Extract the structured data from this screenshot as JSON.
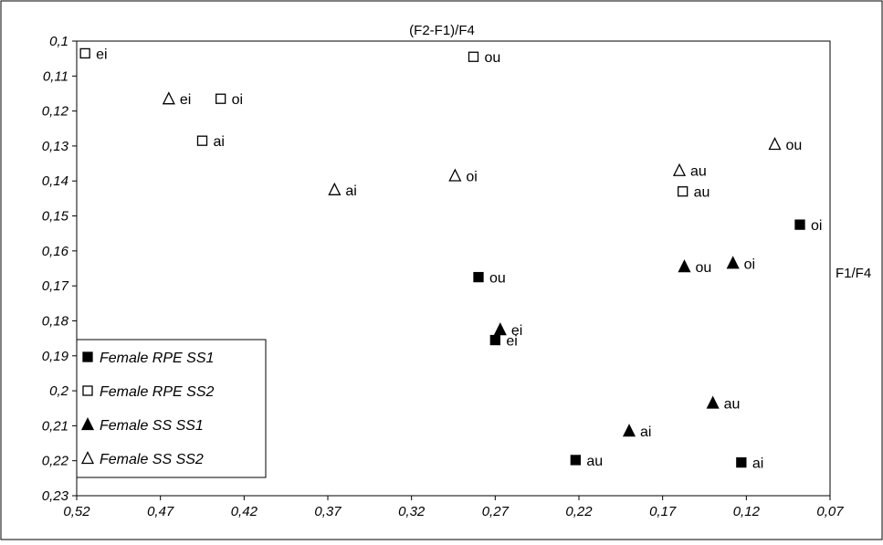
{
  "chart_data": {
    "type": "scatter",
    "title": "",
    "xlabel": "F1/F4",
    "ylabel": "(F2-F1)/F4",
    "xlim": [
      0.52,
      0.07
    ],
    "ylim": [
      0.1,
      0.23
    ],
    "x_reversed": true,
    "y_reversed": true,
    "x_ticks": [
      "0,52",
      "0,47",
      "0,42",
      "0,37",
      "0,32",
      "0,27",
      "0,22",
      "0,17",
      "0,12",
      "0,07"
    ],
    "x_tick_values": [
      0.52,
      0.47,
      0.42,
      0.37,
      0.32,
      0.27,
      0.22,
      0.17,
      0.12,
      0.07
    ],
    "y_ticks": [
      "0,1",
      "0,11",
      "0,12",
      "0,13",
      "0,14",
      "0,15",
      "0,16",
      "0,17",
      "0,18",
      "0,19",
      "0,2",
      "0,21",
      "0,22",
      "0,23"
    ],
    "y_tick_values": [
      0.1,
      0.11,
      0.12,
      0.13,
      0.14,
      0.15,
      0.16,
      0.17,
      0.18,
      0.19,
      0.2,
      0.21,
      0.22,
      0.23
    ],
    "grid": false,
    "legend_position": "bottom-left",
    "series": [
      {
        "name": "Female RPE SS1",
        "marker": "filled-square",
        "color": "#000000",
        "points": [
          {
            "label": "ou",
            "x": 0.28,
            "y": 0.1675
          },
          {
            "label": "ei",
            "x": 0.27,
            "y": 0.1855
          },
          {
            "label": "au",
            "x": 0.222,
            "y": 0.2198
          },
          {
            "label": "ai",
            "x": 0.123,
            "y": 0.2205
          },
          {
            "label": "oi",
            "x": 0.088,
            "y": 0.1525
          }
        ]
      },
      {
        "name": "Female RPE SS2",
        "marker": "open-square",
        "color": "#000000",
        "points": [
          {
            "label": "ei",
            "x": 0.515,
            "y": 0.1035
          },
          {
            "label": "ou",
            "x": 0.283,
            "y": 0.1045
          },
          {
            "label": "oi",
            "x": 0.434,
            "y": 0.1165
          },
          {
            "label": "ai",
            "x": 0.445,
            "y": 0.1285
          },
          {
            "label": "au",
            "x": 0.158,
            "y": 0.143
          }
        ]
      },
      {
        "name": "Female SS SS1",
        "marker": "filled-triangle",
        "color": "#000000",
        "points": [
          {
            "label": "ei",
            "x": 0.267,
            "y": 0.1825
          },
          {
            "label": "ou",
            "x": 0.157,
            "y": 0.1645
          },
          {
            "label": "oi",
            "x": 0.128,
            "y": 0.1635
          },
          {
            "label": "au",
            "x": 0.14,
            "y": 0.2035
          },
          {
            "label": "ai",
            "x": 0.19,
            "y": 0.2115
          }
        ]
      },
      {
        "name": "Female SS SS2",
        "marker": "open-triangle",
        "color": "#000000",
        "points": [
          {
            "label": "ei",
            "x": 0.465,
            "y": 0.1165
          },
          {
            "label": "ai",
            "x": 0.366,
            "y": 0.1425
          },
          {
            "label": "oi",
            "x": 0.294,
            "y": 0.1385
          },
          {
            "label": "au",
            "x": 0.16,
            "y": 0.137
          },
          {
            "label": "ou",
            "x": 0.103,
            "y": 0.1295
          }
        ]
      }
    ]
  }
}
